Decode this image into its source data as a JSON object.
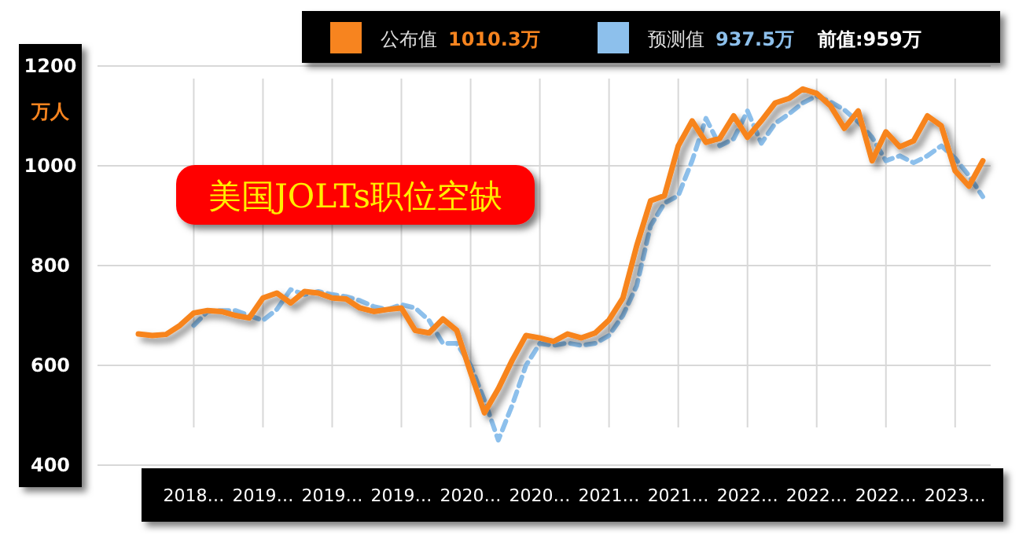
{
  "chart_data": {
    "type": "line",
    "title": "美国JOLTs职位空缺",
    "ylabel": "万人",
    "categories": [
      null,
      null,
      null,
      null,
      "2018…",
      null,
      null,
      null,
      null,
      "2019…",
      null,
      null,
      null,
      null,
      "2019…",
      null,
      null,
      null,
      null,
      "2019…",
      null,
      null,
      null,
      null,
      "2020…",
      null,
      null,
      null,
      null,
      "2020…",
      null,
      null,
      null,
      null,
      "2021…",
      null,
      null,
      null,
      null,
      "2021…",
      null,
      null,
      null,
      null,
      "2022…",
      null,
      null,
      null,
      null,
      "2022…",
      null,
      null,
      null,
      null,
      "2022…",
      null,
      null,
      null,
      null,
      "2023…",
      null,
      null
    ],
    "series": [
      {
        "name": "预测值",
        "color": "#8dc0ec",
        "line_style": "dashed",
        "values": [
          null,
          null,
          null,
          null,
          680,
          708,
          710,
          710,
          700,
          690,
          712,
          752,
          742,
          748,
          742,
          738,
          730,
          718,
          712,
          722,
          715,
          690,
          644,
          644,
          600,
          530,
          450,
          520,
          600,
          644,
          640,
          645,
          640,
          644,
          660,
          700,
          760,
          880,
          925,
          940,
          1010,
          1095,
          1040,
          1054,
          1110,
          1045,
          1085,
          1104,
          1126,
          1140,
          1128,
          1112,
          1088,
          1057,
          1010,
          1020,
          1006,
          1020,
          1040,
          1015,
          980,
          938
        ]
      },
      {
        "name": "公布值",
        "color": "#f7841f",
        "line_style": "solid",
        "values": [
          663,
          660,
          662,
          680,
          705,
          710,
          708,
          700,
          695,
          735,
          745,
          725,
          748,
          745,
          735,
          733,
          715,
          708,
          712,
          715,
          670,
          665,
          693,
          670,
          585,
          505,
          553,
          610,
          660,
          655,
          648,
          663,
          655,
          665,
          691,
          735,
          840,
          930,
          940,
          1040,
          1090,
          1047,
          1055,
          1100,
          1057,
          1090,
          1126,
          1135,
          1154,
          1145,
          1120,
          1075,
          1110,
          1010,
          1068,
          1038,
          1050,
          1100,
          1080,
          990,
          959,
          1010
        ]
      }
    ],
    "annotations": [
      "1010.3万",
      "937.5万",
      "前值:959万"
    ],
    "ylim": [
      400,
      1200
    ],
    "yticks": [
      400,
      600,
      800,
      1000,
      1200
    ],
    "grid": true,
    "legend": "top",
    "marker": "none"
  }
}
